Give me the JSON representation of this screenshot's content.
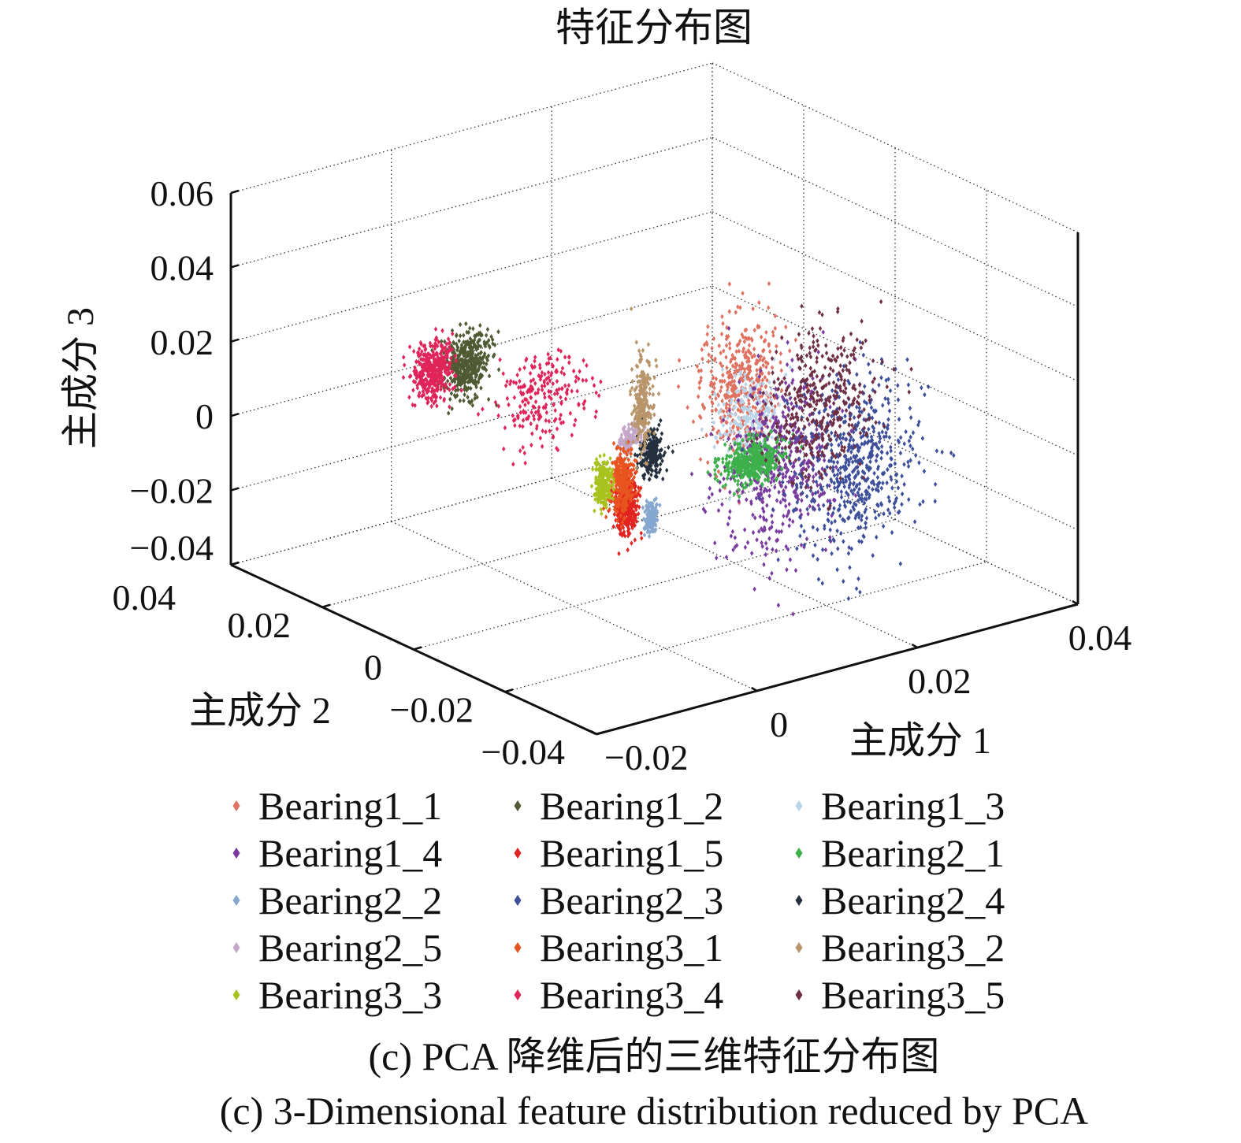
{
  "chart_data": {
    "type": "scatter",
    "projection": "3d",
    "title": "特征分布图",
    "xlabel": "主成分 1",
    "ylabel": "主成分 2",
    "zlabel": "主成分 3",
    "xlim": [
      -0.02,
      0.04
    ],
    "ylim": [
      -0.04,
      0.04
    ],
    "zlim": [
      -0.04,
      0.06
    ],
    "xticks": [
      "−0.02",
      "0",
      "0.02",
      "0.04"
    ],
    "xtick_values": [
      -0.02,
      0,
      0.02,
      0.04
    ],
    "yticks": [
      "0.04",
      "0.02",
      "0",
      "−0.02",
      "−0.04"
    ],
    "ytick_values": [
      0.04,
      0.02,
      0,
      -0.02,
      -0.04
    ],
    "zticks": [
      "0.06",
      "0.04",
      "0.02",
      "0",
      "−0.02",
      "−0.04"
    ],
    "ztick_values": [
      0.06,
      0.04,
      0.02,
      0,
      -0.02,
      -0.04
    ],
    "grid": true,
    "legend_placement": "bottom",
    "series": [
      {
        "name": "Bearing1_1",
        "color": "#e0705f",
        "clusters": [
          {
            "center": [
              0.0207,
              0,
              0.0067
            ],
            "spread": [
              0.0025,
              0.001,
              0.009
            ],
            "n": 450
          }
        ]
      },
      {
        "name": "Bearing1_2",
        "color": "#4f5a33",
        "clusters": [
          {
            "center": [
              -0.0134,
              0,
              0.0326
            ],
            "spread": [
              0.0014,
              0.0005,
              0.0042
            ],
            "n": 450
          }
        ]
      },
      {
        "name": "Bearing1_3",
        "color": "#b8d4e8",
        "clusters": [
          {
            "center": [
              0.0217,
              0,
              -0.0024
            ],
            "spread": [
              0.0018,
              0.0005,
              0.006
            ],
            "n": 200
          }
        ]
      },
      {
        "name": "Bearing1_4",
        "color": "#7a3b9e",
        "clusters": [
          {
            "center": [
              0.0255,
              0,
              -0.0175
            ],
            "spread": [
              0.0035,
              0.001,
              0.012
            ],
            "n": 500
          }
        ]
      },
      {
        "name": "Bearing1_5",
        "color": "#e2231f",
        "clusters": [
          {
            "center": [
              0.0065,
              0,
              -0.0168
            ],
            "spread": [
              0.0007,
              0.0003,
              0.004
            ],
            "n": 350
          }
        ]
      },
      {
        "name": "Bearing2_1",
        "color": "#3db04b",
        "clusters": [
          {
            "center": [
              0.0222,
              0,
              -0.0143
            ],
            "spread": [
              0.0018,
              0.0004,
              0.0028
            ],
            "n": 450
          }
        ]
      },
      {
        "name": "Bearing2_2",
        "color": "#86a7cf",
        "clusters": [
          {
            "center": [
              0.0096,
              0,
              -0.0218
            ],
            "spread": [
              0.0004,
              0.0002,
              0.0022
            ],
            "n": 150
          }
        ]
      },
      {
        "name": "Bearing2_3",
        "color": "#3d4f9a",
        "clusters": [
          {
            "center": [
              0.035,
              0,
              -0.0228
            ],
            "spread": [
              0.0038,
              0.001,
              0.012
            ],
            "n": 550
          }
        ]
      },
      {
        "name": "Bearing2_4",
        "color": "#25303f",
        "clusters": [
          {
            "center": [
              0.0095,
              0,
              -0.0047
            ],
            "spread": [
              0.0008,
              0.0003,
              0.003
            ],
            "n": 220
          }
        ]
      },
      {
        "name": "Bearing2_5",
        "color": "#c3a6c8",
        "clusters": [
          {
            "center": [
              0.007,
              0,
              0.001
            ],
            "spread": [
              0.0008,
              0.0003,
              0.002
            ],
            "n": 120
          }
        ]
      },
      {
        "name": "Bearing3_1",
        "color": "#e8541f",
        "clusters": [
          {
            "center": [
              0.006,
              0,
              -0.0102
            ],
            "spread": [
              0.0007,
              0.0003,
              0.004
            ],
            "n": 300
          }
        ]
      },
      {
        "name": "Bearing3_2",
        "color": "#b8956a",
        "clusters": [
          {
            "center": [
              0.0085,
              0,
              0.0096
            ],
            "spread": [
              0.0006,
              0.0003,
              0.006
            ],
            "n": 260
          }
        ]
      },
      {
        "name": "Bearing3_3",
        "color": "#a8c21e",
        "clusters": [
          {
            "center": [
              0.0036,
              0,
              -0.0092
            ],
            "spread": [
              0.0005,
              0.0003,
              0.003
            ],
            "n": 220
          }
        ]
      },
      {
        "name": "Bearing3_4",
        "color": "#e0245a",
        "clusters": [
          {
            "center": [
              -0.0177,
              0,
              0.0338
            ],
            "spread": [
              0.0012,
              0.0005,
              0.004
            ],
            "n": 380
          },
          {
            "center": [
              -0.0038,
              0,
              0.0189
            ],
            "spread": [
              0.003,
              0.001,
              0.0065
            ],
            "n": 220
          }
        ]
      },
      {
        "name": "Bearing3_5",
        "color": "#6e2f45",
        "clusters": [
          {
            "center": [
              0.0306,
              0,
              -0.0032
            ],
            "spread": [
              0.0032,
              0.001,
              0.0095
            ],
            "n": 380
          }
        ]
      }
    ]
  },
  "caption": {
    "line1": "(c) PCA 降维后的三维特征分布图",
    "line2": "(c) 3-Dimensional feature distribution reduced by PCA"
  }
}
